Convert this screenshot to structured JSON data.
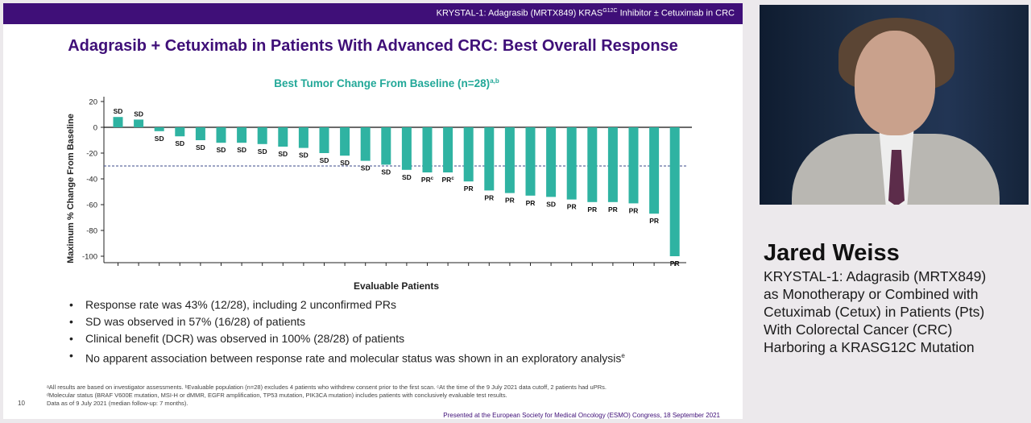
{
  "slide": {
    "header": "KRYSTAL-1: Adagrasib (MRTX849) KRAS",
    "header_sup": "G12C",
    "header_tail": " Inhibitor ± Cetuximab in CRC",
    "title": "Adagrasib + Cetuximab in Patients With Advanced CRC: Best Overall Response",
    "bullets": [
      {
        "text": "Response rate was 43% (12/28), including 2 unconfirmed PRs",
        "sup": ""
      },
      {
        "text": "SD was observed in 57% (16/28) of patients",
        "sup": ""
      },
      {
        "text": "Clinical benefit (DCR) was observed in 100% (28/28) of patients",
        "sup": ""
      },
      {
        "text": "No apparent association between response rate and molecular status was shown in an exploratory analysis",
        "sup": "e"
      }
    ],
    "footnotes": [
      "ᵃAll results are based on investigator assessments. ᵇEvaluable population (n=28) excludes 4 patients who withdrew consent prior to the first scan. ᶜAt the time of the 9 July 2021 data cutoff, 2 patients had uPRs.",
      "ᵈMolecular status (BRAF V600E mutation, MSI-H or dMMR, EGFR amplification, TP53 mutation, PIK3CA mutation) includes patients with conclusively evaluable test results.",
      "Data as of 9 July 2021 (median follow-up: 7 months)."
    ],
    "page_number": "10",
    "presented_at": "Presented at the European Society for Medical Oncology (ESMO) Congress, 18 September 2021"
  },
  "chart_data": {
    "type": "bar",
    "title": "Best Tumor Change From Baseline (n=28)",
    "title_sup": "a,b",
    "xlabel": "Evaluable Patients",
    "ylabel": "Maximum % Change From Baseline",
    "ylim": [
      -105,
      20
    ],
    "yticks": [
      20,
      0,
      -20,
      -40,
      -60,
      -80,
      -100
    ],
    "reference_line": -30,
    "bar_color": "#2fb3a2",
    "values": [
      8,
      6,
      -3,
      -7,
      -10,
      -12,
      -12,
      -13,
      -15,
      -16,
      -20,
      -22,
      -26,
      -29,
      -33,
      -35,
      -35,
      -42,
      -49,
      -51,
      -53,
      -54,
      -56,
      -58,
      -58,
      -59,
      -67,
      -100
    ],
    "labels": [
      "SD",
      "SD",
      "SD",
      "SD",
      "SD",
      "SD",
      "SD",
      "SD",
      "SD",
      "SD",
      "SD",
      "SD",
      "SD",
      "SD",
      "SD",
      "PR",
      "PR",
      "PR",
      "PR",
      "PR",
      "PR",
      "SD",
      "PR",
      "PR",
      "PR",
      "PR",
      "PR",
      "PR"
    ],
    "label_sups": [
      "",
      "",
      "",
      "",
      "",
      "",
      "",
      "",
      "",
      "",
      "",
      "",
      "",
      "",
      "",
      "c",
      "c",
      "",
      "",
      "",
      "",
      "",
      "",
      "",
      "",
      "",
      "",
      ""
    ]
  },
  "speaker": {
    "name": "Jared Weiss",
    "description_lines": [
      "KRYSTAL-1: Adagrasib (MRTX849)",
      "as Monotherapy or Combined with",
      "Cetuximab (Cetux) in Patients (Pts)",
      "With Colorectal Cancer (CRC)",
      "Harboring a KRASG12C Mutation"
    ]
  }
}
